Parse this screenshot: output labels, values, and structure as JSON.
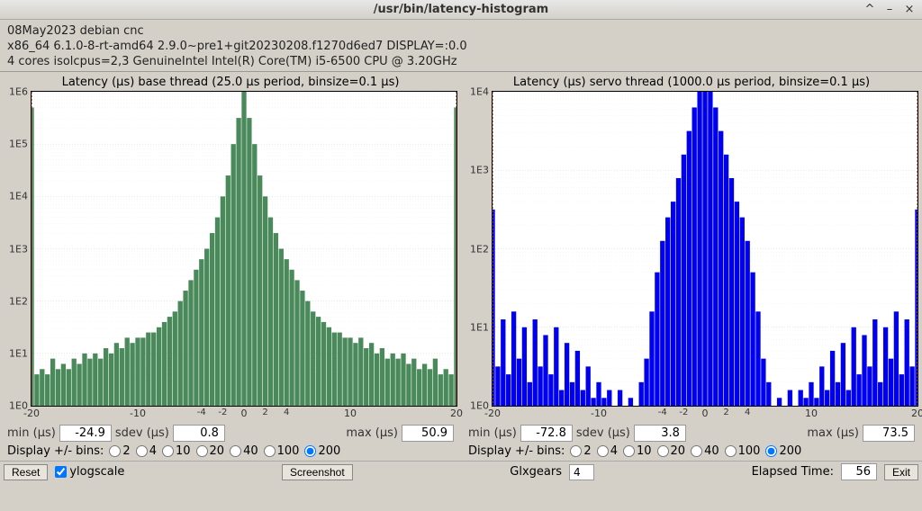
{
  "window": {
    "title": "/usr/bin/latency-histogram",
    "minimize_glyph": "^",
    "maximize_glyph": "–",
    "close_glyph": "×"
  },
  "header": {
    "line1": "08May2023 debian cnc",
    "line2": "x86_64  6.1.0-8-rt-amd64  2.9.0~pre1+git20230208.f1270d6ed7  DISPLAY=:0.0",
    "line3": "4 cores  isolcpus=2,3  GenuineIntel  Intel(R) Core(TM) i5-6500 CPU @ 3.20GHz"
  },
  "charts": {
    "left": {
      "title": "Latency (µs) base thread (25.0 µs period, binsize=0.1 µs)",
      "type": "histogram",
      "yscale": "log",
      "xlim": [
        -20,
        20
      ],
      "ylim_exp": [
        0,
        6
      ],
      "ytick_labels": [
        "1E0",
        "1E1",
        "1E2",
        "1E3",
        "1E4",
        "1E5",
        "1E6"
      ],
      "xticks_major": [
        -20,
        -10,
        0,
        10,
        20
      ],
      "xticks_minor": [
        -4,
        -2,
        2,
        4
      ],
      "bar_color": "#4a8a5a",
      "marker_color": "#cc5500",
      "background_color": "#ffffff",
      "grid_color": "#cccccc",
      "markers_x": [
        -20,
        20
      ],
      "series": [
        [
          -20,
          5.7
        ],
        [
          -19.5,
          0.6
        ],
        [
          -19,
          0.7
        ],
        [
          -18.5,
          0.6
        ],
        [
          -18,
          0.9
        ],
        [
          -17.5,
          0.7
        ],
        [
          -17,
          0.8
        ],
        [
          -16.5,
          0.7
        ],
        [
          -16,
          0.9
        ],
        [
          -15.5,
          0.8
        ],
        [
          -15,
          1.0
        ],
        [
          -14.5,
          0.9
        ],
        [
          -14,
          1.0
        ],
        [
          -13.5,
          0.9
        ],
        [
          -13,
          1.1
        ],
        [
          -12.5,
          1.0
        ],
        [
          -12,
          1.2
        ],
        [
          -11.5,
          1.1
        ],
        [
          -11,
          1.3
        ],
        [
          -10.5,
          1.2
        ],
        [
          -10,
          1.3
        ],
        [
          -9.5,
          1.3
        ],
        [
          -9,
          1.4
        ],
        [
          -8.5,
          1.4
        ],
        [
          -8,
          1.5
        ],
        [
          -7.5,
          1.6
        ],
        [
          -7,
          1.7
        ],
        [
          -6.5,
          1.8
        ],
        [
          -6,
          2.0
        ],
        [
          -5.5,
          2.2
        ],
        [
          -5,
          2.4
        ],
        [
          -4.5,
          2.6
        ],
        [
          -4,
          2.8
        ],
        [
          -3.5,
          3.0
        ],
        [
          -3,
          3.3
        ],
        [
          -2.5,
          3.6
        ],
        [
          -2,
          4.0
        ],
        [
          -1.5,
          4.4
        ],
        [
          -1,
          5.0
        ],
        [
          -0.5,
          5.5
        ],
        [
          0,
          6.2
        ],
        [
          0.5,
          5.5
        ],
        [
          1,
          5.0
        ],
        [
          1.5,
          4.4
        ],
        [
          2,
          4.0
        ],
        [
          2.5,
          3.6
        ],
        [
          3,
          3.3
        ],
        [
          3.5,
          3.0
        ],
        [
          4,
          2.8
        ],
        [
          4.5,
          2.6
        ],
        [
          5,
          2.4
        ],
        [
          5.5,
          2.2
        ],
        [
          6,
          2.0
        ],
        [
          6.5,
          1.8
        ],
        [
          7,
          1.7
        ],
        [
          7.5,
          1.6
        ],
        [
          8,
          1.5
        ],
        [
          8.5,
          1.4
        ],
        [
          9,
          1.4
        ],
        [
          9.5,
          1.3
        ],
        [
          10,
          1.3
        ],
        [
          10.5,
          1.2
        ],
        [
          11,
          1.3
        ],
        [
          11.5,
          1.1
        ],
        [
          12,
          1.2
        ],
        [
          12.5,
          1.0
        ],
        [
          13,
          1.1
        ],
        [
          13.5,
          0.9
        ],
        [
          14,
          1.0
        ],
        [
          14.5,
          0.9
        ],
        [
          15,
          1.0
        ],
        [
          15.5,
          0.8
        ],
        [
          16,
          0.9
        ],
        [
          16.5,
          0.7
        ],
        [
          17,
          0.8
        ],
        [
          17.5,
          0.7
        ],
        [
          18,
          0.9
        ],
        [
          18.5,
          0.6
        ],
        [
          19,
          0.7
        ],
        [
          19.5,
          0.6
        ],
        [
          20,
          5.7
        ]
      ],
      "stats": {
        "min_label": "min (µs)",
        "min": "-24.9",
        "sdev_label": "sdev (µs)",
        "sdev": "0.8",
        "max_label": "max (µs)",
        "max": "50.9"
      },
      "bins": {
        "label": "Display +/- bins:",
        "options": [
          "2",
          "4",
          "10",
          "20",
          "40",
          "100",
          "200"
        ],
        "selected": "200"
      }
    },
    "right": {
      "title": "Latency (µs) servo thread (1000.0 µs period, binsize=0.1 µs)",
      "type": "histogram",
      "yscale": "log",
      "xlim": [
        -20,
        20
      ],
      "ylim_exp": [
        0,
        4
      ],
      "ytick_labels": [
        "1E0",
        "1E1",
        "1E2",
        "1E3",
        "1E4"
      ],
      "xticks_major": [
        -20,
        -10,
        0,
        10,
        20
      ],
      "xticks_minor": [
        -4,
        -2,
        2,
        4
      ],
      "bar_color": "#0000ee",
      "marker_color": "#cc5500",
      "background_color": "#ffffff",
      "grid_color": "#cccccc",
      "markers_x": [
        -20,
        20
      ],
      "series": [
        [
          -20,
          2.5
        ],
        [
          -19.5,
          0.5
        ],
        [
          -19,
          1.1
        ],
        [
          -18.5,
          0.4
        ],
        [
          -18,
          1.2
        ],
        [
          -17.5,
          0.6
        ],
        [
          -17,
          1.0
        ],
        [
          -16.5,
          0.3
        ],
        [
          -16,
          1.1
        ],
        [
          -15.5,
          0.5
        ],
        [
          -15,
          0.9
        ],
        [
          -14.5,
          0.4
        ],
        [
          -14,
          1.0
        ],
        [
          -13.5,
          0.2
        ],
        [
          -13,
          0.8
        ],
        [
          -12.5,
          0.3
        ],
        [
          -12,
          0.7
        ],
        [
          -11.5,
          0.2
        ],
        [
          -11,
          0.5
        ],
        [
          -10.5,
          0.1
        ],
        [
          -10,
          0.3
        ],
        [
          -9.5,
          0.1
        ],
        [
          -9,
          0.2
        ],
        [
          -8.5,
          0
        ],
        [
          -8,
          0.2
        ],
        [
          -7.5,
          0
        ],
        [
          -7,
          0.1
        ],
        [
          -6.5,
          0
        ],
        [
          -6,
          0.3
        ],
        [
          -5.5,
          0.6
        ],
        [
          -5,
          1.2
        ],
        [
          -4.5,
          1.7
        ],
        [
          -4,
          2.1
        ],
        [
          -3.5,
          2.4
        ],
        [
          -3,
          2.6
        ],
        [
          -2.5,
          2.9
        ],
        [
          -2,
          3.2
        ],
        [
          -1.5,
          3.5
        ],
        [
          -1,
          3.8
        ],
        [
          -0.5,
          4.1
        ],
        [
          0,
          4.2
        ],
        [
          0.5,
          4.1
        ],
        [
          1,
          3.8
        ],
        [
          1.5,
          3.5
        ],
        [
          2,
          3.2
        ],
        [
          2.5,
          2.9
        ],
        [
          3,
          2.6
        ],
        [
          3.5,
          2.4
        ],
        [
          4,
          2.1
        ],
        [
          4.5,
          1.7
        ],
        [
          5,
          1.2
        ],
        [
          5.5,
          0.6
        ],
        [
          6,
          0.3
        ],
        [
          6.5,
          0
        ],
        [
          7,
          0.1
        ],
        [
          7.5,
          0
        ],
        [
          8,
          0.2
        ],
        [
          8.5,
          0
        ],
        [
          9,
          0.2
        ],
        [
          9.5,
          0.1
        ],
        [
          10,
          0.3
        ],
        [
          10.5,
          0.1
        ],
        [
          11,
          0.5
        ],
        [
          11.5,
          0.2
        ],
        [
          12,
          0.7
        ],
        [
          12.5,
          0.3
        ],
        [
          13,
          0.8
        ],
        [
          13.5,
          0.2
        ],
        [
          14,
          1.0
        ],
        [
          14.5,
          0.4
        ],
        [
          15,
          0.9
        ],
        [
          15.5,
          0.5
        ],
        [
          16,
          1.1
        ],
        [
          16.5,
          0.3
        ],
        [
          17,
          1.0
        ],
        [
          17.5,
          0.6
        ],
        [
          18,
          1.2
        ],
        [
          18.5,
          0.4
        ],
        [
          19,
          1.1
        ],
        [
          19.5,
          0.5
        ],
        [
          20,
          2.5
        ]
      ],
      "stats": {
        "min_label": "min (µs)",
        "min": "-72.8",
        "sdev_label": "sdev (µs)",
        "sdev": "3.8",
        "max_label": "max (µs)",
        "max": "73.5"
      },
      "bins": {
        "label": "Display +/- bins:",
        "options": [
          "2",
          "4",
          "10",
          "20",
          "40",
          "100",
          "200"
        ],
        "selected": "200"
      }
    }
  },
  "footer": {
    "reset": "Reset",
    "ylogscale": "ylogscale",
    "screenshot": "Screenshot",
    "glxgears_label": "Glxgears",
    "glxgears_val": "4",
    "elapsed_label": "Elapsed Time:",
    "elapsed_val": "56",
    "exit": "Exit"
  }
}
